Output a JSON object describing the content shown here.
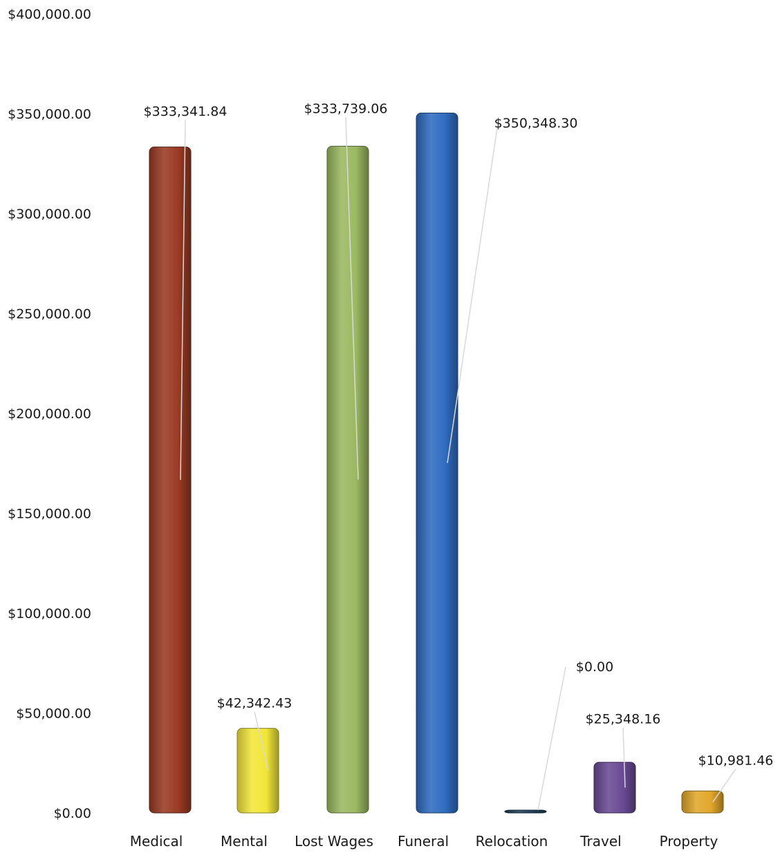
{
  "chart_data": {
    "type": "bar",
    "title": "",
    "xlabel": "",
    "ylabel": "",
    "ylim": [
      0,
      400000
    ],
    "yticks": [
      0,
      50000,
      100000,
      150000,
      200000,
      250000,
      300000,
      350000,
      400000
    ],
    "ytick_labels": [
      "$0.00",
      "$50,000.00",
      "$100,000.00",
      "$150,000.00",
      "$200,000.00",
      "$250,000.00",
      "$300,000.00",
      "$350,000.00",
      "$400,000.00"
    ],
    "grid": false,
    "legend": "none",
    "categories": [
      "Medical",
      "Mental",
      "Lost Wages",
      "Funeral",
      "Relocation",
      "Travel",
      "Property"
    ],
    "values": [
      333341.84,
      42342.43,
      333739.06,
      350348.3,
      0.0,
      25348.16,
      10981.46
    ],
    "data_labels": [
      "$333,341.84",
      "$42,342.43",
      "$333,739.06",
      "$350,348.30",
      "$0.00",
      "$25,348.16",
      "$10,981.46"
    ],
    "colors": [
      "#9a3a24",
      "#f2e63a",
      "#9bb961",
      "#2f6cc0",
      "#1f3e5a",
      "#6a4a94",
      "#e2a72b"
    ]
  }
}
